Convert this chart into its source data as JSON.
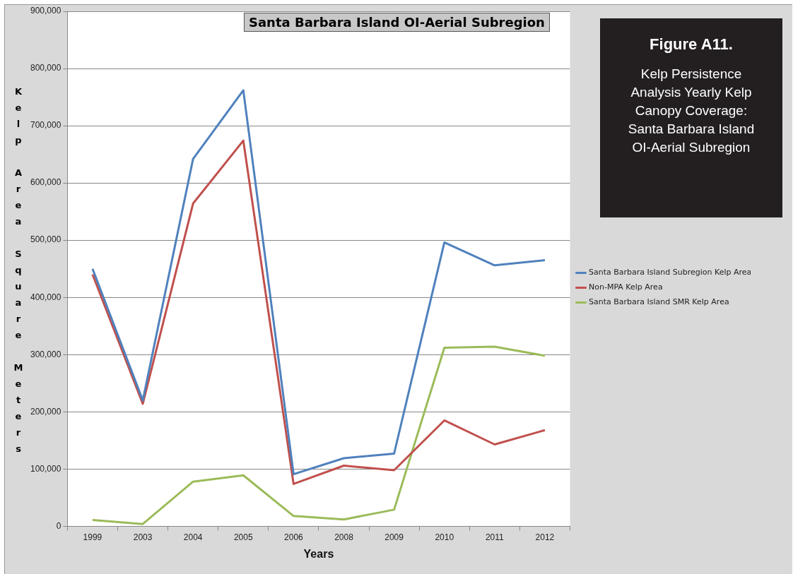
{
  "chart_data": {
    "type": "line",
    "title": "Santa Barbara Island OI-Aerial Subregion",
    "xlabel": "Years",
    "ylabel": "Kelp Area Square Meters",
    "annotations": [
      "Figure A11.",
      "Kelp Persistence Analysis Yearly Kelp Canopy Coverage: Santa Barbara Island OI-Aerial Subregion"
    ],
    "categories": [
      "1999",
      "2003",
      "2004",
      "2005",
      "2006",
      "2008",
      "2009",
      "2010",
      "2011",
      "2012"
    ],
    "series": [
      {
        "name": "Santa Barbara Island Subregion Kelp Area",
        "color": "#4f81bd",
        "values": [
          450000,
          220000,
          642000,
          762000,
          91000,
          119000,
          127000,
          496000,
          456000,
          465000
        ]
      },
      {
        "name": "Non-MPA Kelp Area",
        "color": "#c0504d",
        "values": [
          440000,
          214000,
          564000,
          674000,
          74000,
          106000,
          98000,
          185000,
          143000,
          168000
        ]
      },
      {
        "name": "Santa Barbara Island SMR Kelp Area",
        "color": "#9bbb59",
        "values": [
          11000,
          4000,
          78000,
          89000,
          18000,
          12000,
          29000,
          312000,
          314000,
          298000
        ]
      }
    ],
    "ylim": [
      0,
      900000
    ],
    "yticks": [
      0,
      {
        "value": 100000,
        "label": "100,000"
      },
      {
        "value": 200000,
        "label": "200,000"
      },
      {
        "value": 300000,
        "label": "300,000"
      },
      {
        "value": 400000,
        "label": "400,000"
      },
      {
        "value": 500000,
        "label": "500,000"
      },
      {
        "value": 600000,
        "label": "600,000"
      },
      {
        "value": 700000,
        "label": "700,000"
      },
      {
        "value": 800000,
        "label": "800,000"
      },
      {
        "value": 900000,
        "label": "900,000"
      }
    ],
    "grid": "y",
    "legend": "right",
    "marker": "none",
    "line_style": "solid"
  }
}
